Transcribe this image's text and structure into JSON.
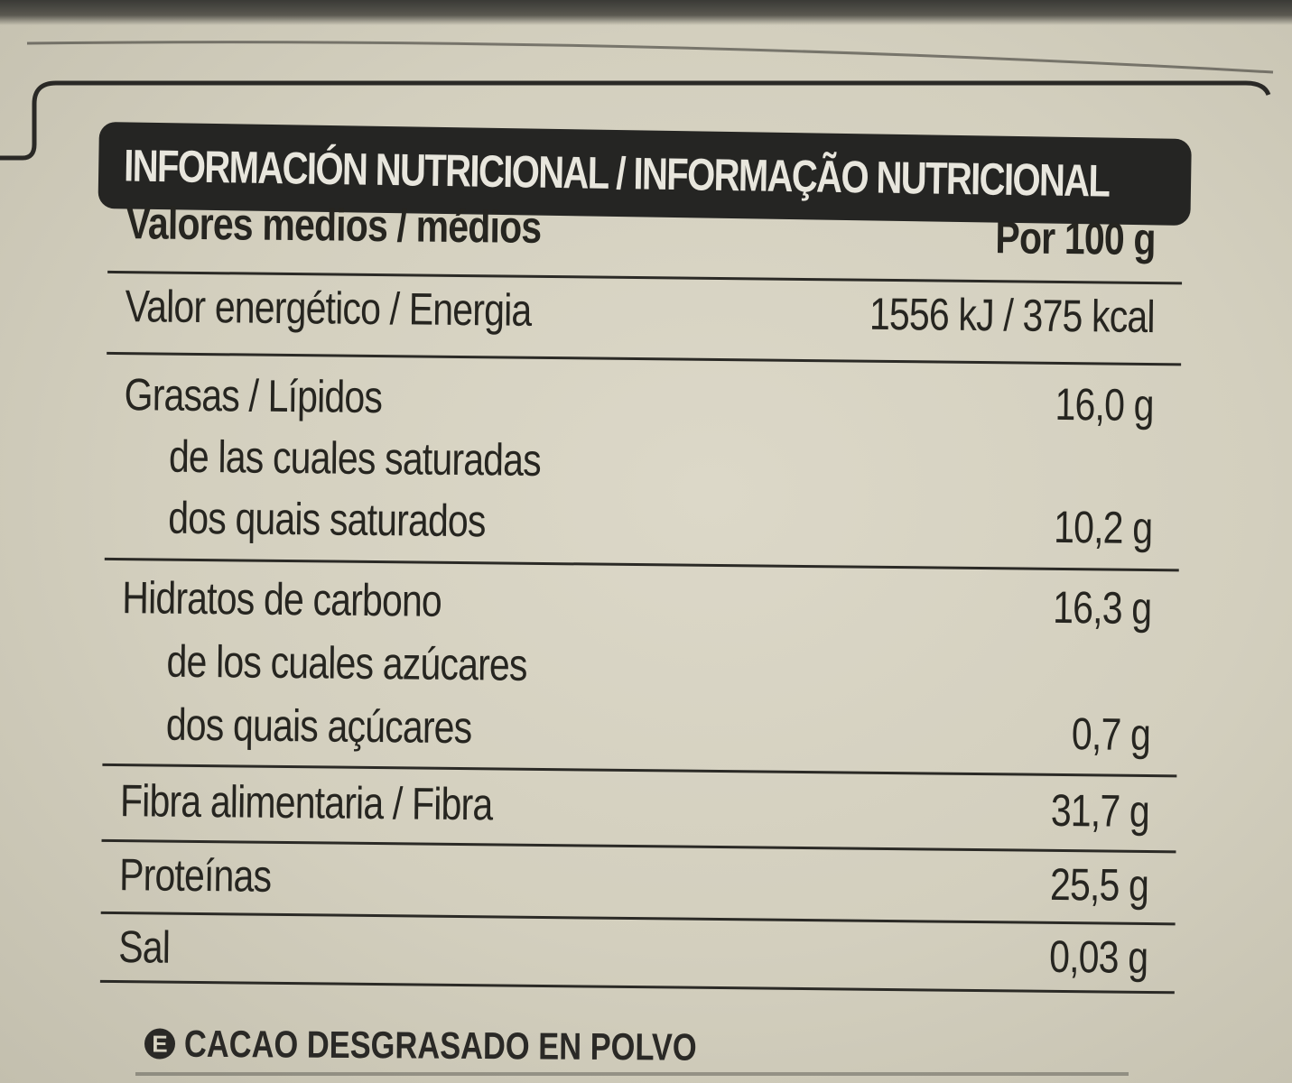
{
  "label": {
    "header": "INFORMACIÓN NUTRICIONAL / INFORMAÇÃO NUTRICIONAL",
    "column_left_header": "Valores medios / médios",
    "column_right_header": "Por 100 g",
    "rows": {
      "energy": {
        "label": "Valor energético / Energia",
        "value": "1556 kJ / 375 kcal"
      },
      "fat": {
        "label": "Grasas / Lípidos",
        "value": "16,0 g"
      },
      "saturated_es": {
        "label": "de las cuales saturadas"
      },
      "saturated_pt": {
        "label": "dos quais saturados",
        "value": "10,2 g"
      },
      "carbs": {
        "label": "Hidratos de carbono",
        "value": "16,3 g"
      },
      "sugars_es": {
        "label": "de los cuales azúcares"
      },
      "sugars_pt": {
        "label": "dos quais açúcares",
        "value": "0,7 g"
      },
      "fibre": {
        "label": "Fibra alimentaria / Fibra",
        "value": "31,7 g"
      },
      "protein": {
        "label": "Proteínas",
        "value": "25,5 g"
      },
      "salt": {
        "label": "Sal",
        "value": "0,03 g"
      }
    },
    "footer": {
      "badge": "E",
      "text": "CACAO DESGRASADO EN POLVO"
    }
  },
  "colors": {
    "paper": "#d5d1c0",
    "ink": "#262520",
    "header_bar": "#252523",
    "header_text": "#e8e6dd"
  }
}
